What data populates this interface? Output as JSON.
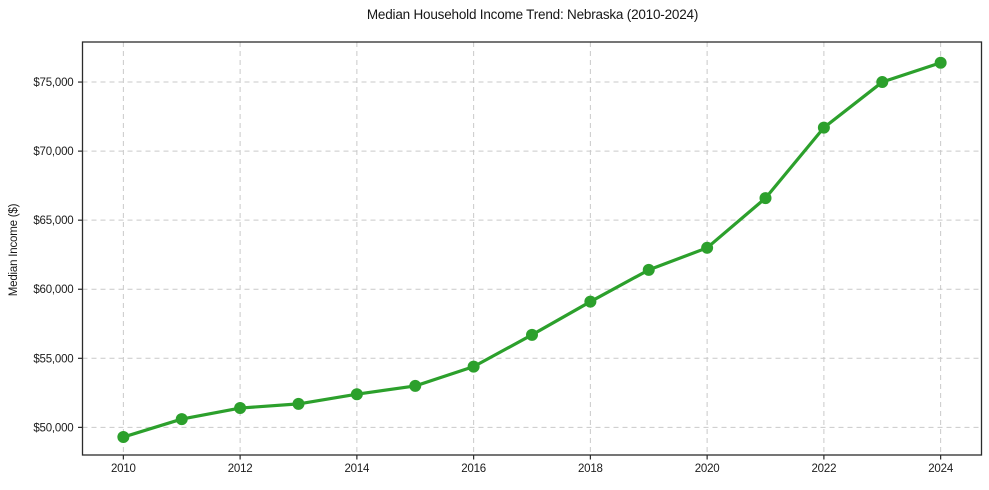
{
  "figure": {
    "title": "Median Household Income Trend: Nebraska (2010-2024)",
    "ylabel": "Median Income ($)"
  },
  "chart_data": {
    "type": "line",
    "title": "Median Household Income Trend: Nebraska (2010-2024)",
    "xlabel": "",
    "ylabel": "Median Income ($)",
    "series": [
      {
        "name": "Median household income",
        "x": [
          2010,
          2011,
          2012,
          2013,
          2014,
          2015,
          2016,
          2017,
          2018,
          2019,
          2020,
          2021,
          2022,
          2023,
          2024
        ],
        "values": [
          49300,
          50600,
          51400,
          51700,
          52400,
          53000,
          54400,
          56700,
          59100,
          61400,
          63000,
          66600,
          71700,
          75000,
          76400
        ]
      }
    ],
    "xlim": [
      2009.3,
      2024.7
    ],
    "ylim": [
      48000,
      77900
    ],
    "x_ticks": [
      2010,
      2012,
      2014,
      2016,
      2018,
      2020,
      2022,
      2024
    ],
    "x_tick_labels": [
      "2010",
      "2012",
      "2014",
      "2016",
      "2018",
      "2020",
      "2022",
      "2024"
    ],
    "y_ticks": [
      50000,
      55000,
      60000,
      65000,
      70000,
      75000
    ],
    "y_tick_labels": [
      "$50,000",
      "$55,000",
      "$60,000",
      "$65,000",
      "$70,000",
      "$75,000"
    ],
    "grid": "dashed-both-axes",
    "legend": "none",
    "marker": "circle",
    "line_color": "#2ca02c"
  },
  "style": {
    "line_color": "#2ca02c",
    "marker_color": "#2ca02c",
    "grid_color": "#c9c9c9",
    "spine_color": "#2b2b2b",
    "tick_text_color": "#1c1c1c",
    "background": "#ffffff"
  }
}
